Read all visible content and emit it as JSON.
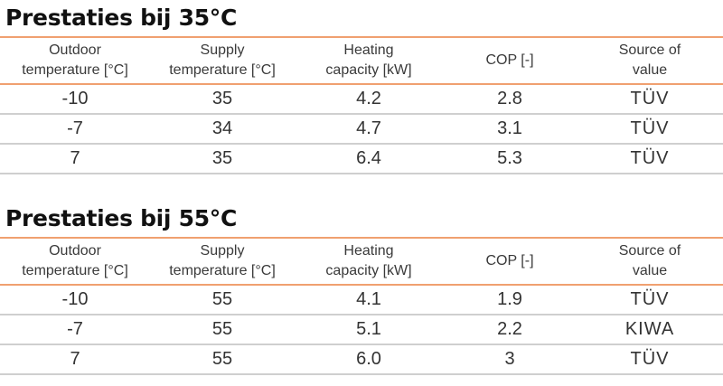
{
  "colors": {
    "header_rule": "#f0a070",
    "row_rule": "#cfcfcf",
    "text": "#333333"
  },
  "headers": {
    "outdoor": {
      "line1": "Outdoor",
      "line2": "temperature [°C]"
    },
    "supply": {
      "line1": "Supply",
      "line2": "temperature [°C]"
    },
    "heating": {
      "line1": "Heating",
      "line2": "capacity [kW]"
    },
    "cop": "COP [-]",
    "source": {
      "line1": "Source of",
      "line2": "value"
    }
  },
  "sections": [
    {
      "title": "Prestaties bij 35°C",
      "rows": [
        {
          "outdoor": "-10",
          "supply": "35",
          "capacity": "4.2",
          "cop": "2.8",
          "source": "TÜV"
        },
        {
          "outdoor": "-7",
          "supply": "34",
          "capacity": "4.7",
          "cop": "3.1",
          "source": "TÜV"
        },
        {
          "outdoor": "7",
          "supply": "35",
          "capacity": "6.4",
          "cop": "5.3",
          "source": "TÜV"
        }
      ]
    },
    {
      "title": "Prestaties bij 55°C",
      "rows": [
        {
          "outdoor": "-10",
          "supply": "55",
          "capacity": "4.1",
          "cop": "1.9",
          "source": "TÜV"
        },
        {
          "outdoor": "-7",
          "supply": "55",
          "capacity": "5.1",
          "cop": "2.2",
          "source": "KIWA"
        },
        {
          "outdoor": "7",
          "supply": "55",
          "capacity": "6.0",
          "cop": "3",
          "source": "TÜV"
        }
      ]
    }
  ]
}
